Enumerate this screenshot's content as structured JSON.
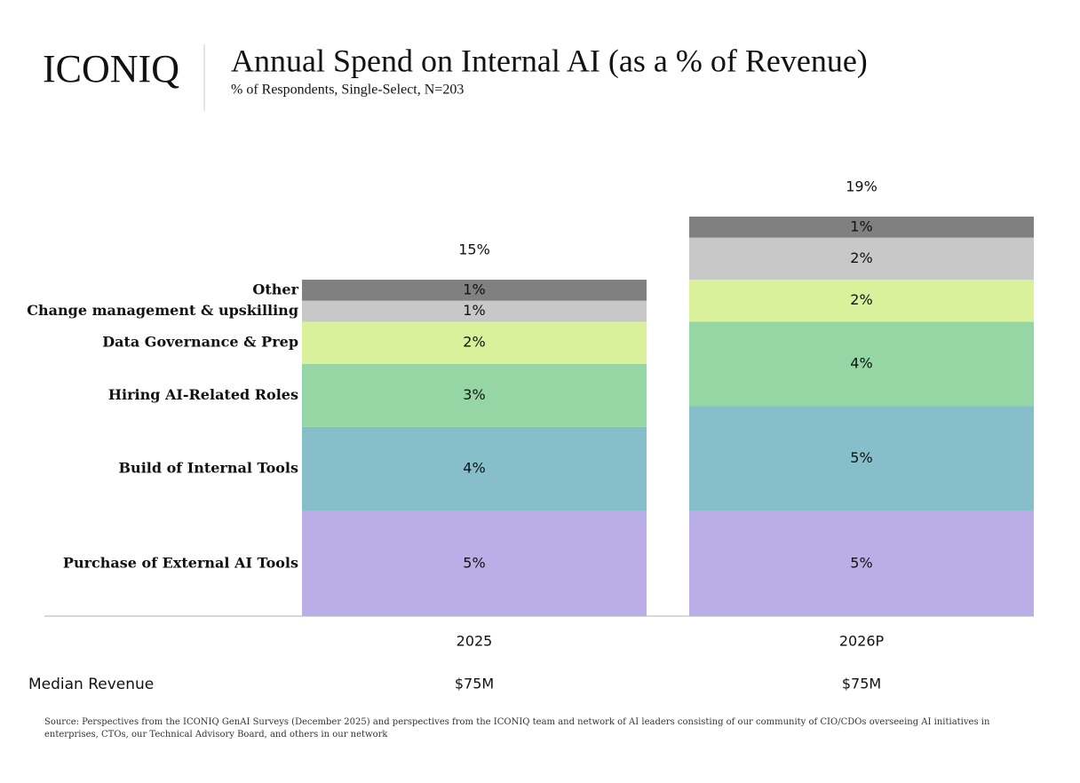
{
  "brand": "ICONIQ",
  "chart_data": {
    "type": "stacked-bar",
    "title": "Annual Spend on Internal AI (as a % of Revenue)",
    "subtitle": "% of Respondents, Single-Select, N=203",
    "categories": [
      "2025",
      "2026P"
    ],
    "series": [
      {
        "name": "Purchase of External AI Tools",
        "color": "#bbaee6",
        "values": [
          5,
          5
        ],
        "value_labels": [
          "5%",
          "5%"
        ]
      },
      {
        "name": "Build of Internal Tools",
        "color": "#86bfca",
        "values": [
          4,
          5
        ],
        "value_labels": [
          "4%",
          "5%"
        ]
      },
      {
        "name": "Hiring AI-Related Roles",
        "color": "#95d6a4",
        "values": [
          3,
          4
        ],
        "value_labels": [
          "3%",
          "4%"
        ]
      },
      {
        "name": "Data Governance & Prep",
        "color": "#d9f19a",
        "values": [
          2,
          2
        ],
        "value_labels": [
          "2%",
          "2%"
        ]
      },
      {
        "name": "Change management & upskilling",
        "color": "#c8c8c8",
        "values": [
          1,
          2
        ],
        "value_labels": [
          "1%",
          "2%"
        ]
      },
      {
        "name": "Other",
        "color": "#808080",
        "values": [
          1,
          1
        ],
        "value_labels": [
          "1%",
          "1%"
        ]
      }
    ],
    "totals": {
      "values": [
        15,
        19
      ],
      "value_labels": [
        "15%",
        "19%"
      ]
    },
    "median_revenue": {
      "label": "Median Revenue",
      "values": [
        75000000,
        75000000
      ],
      "value_labels": [
        "$75M",
        "$75M"
      ]
    }
  },
  "source": "Source: Perspectives from the ICONIQ GenAI Surveys (December 2025) and perspectives from the ICONIQ team and network of AI leaders consisting of our community of CIO/CDOs overseeing AI initiatives in enterprises, CTOs, our Technical Advisory Board, and others in our network"
}
